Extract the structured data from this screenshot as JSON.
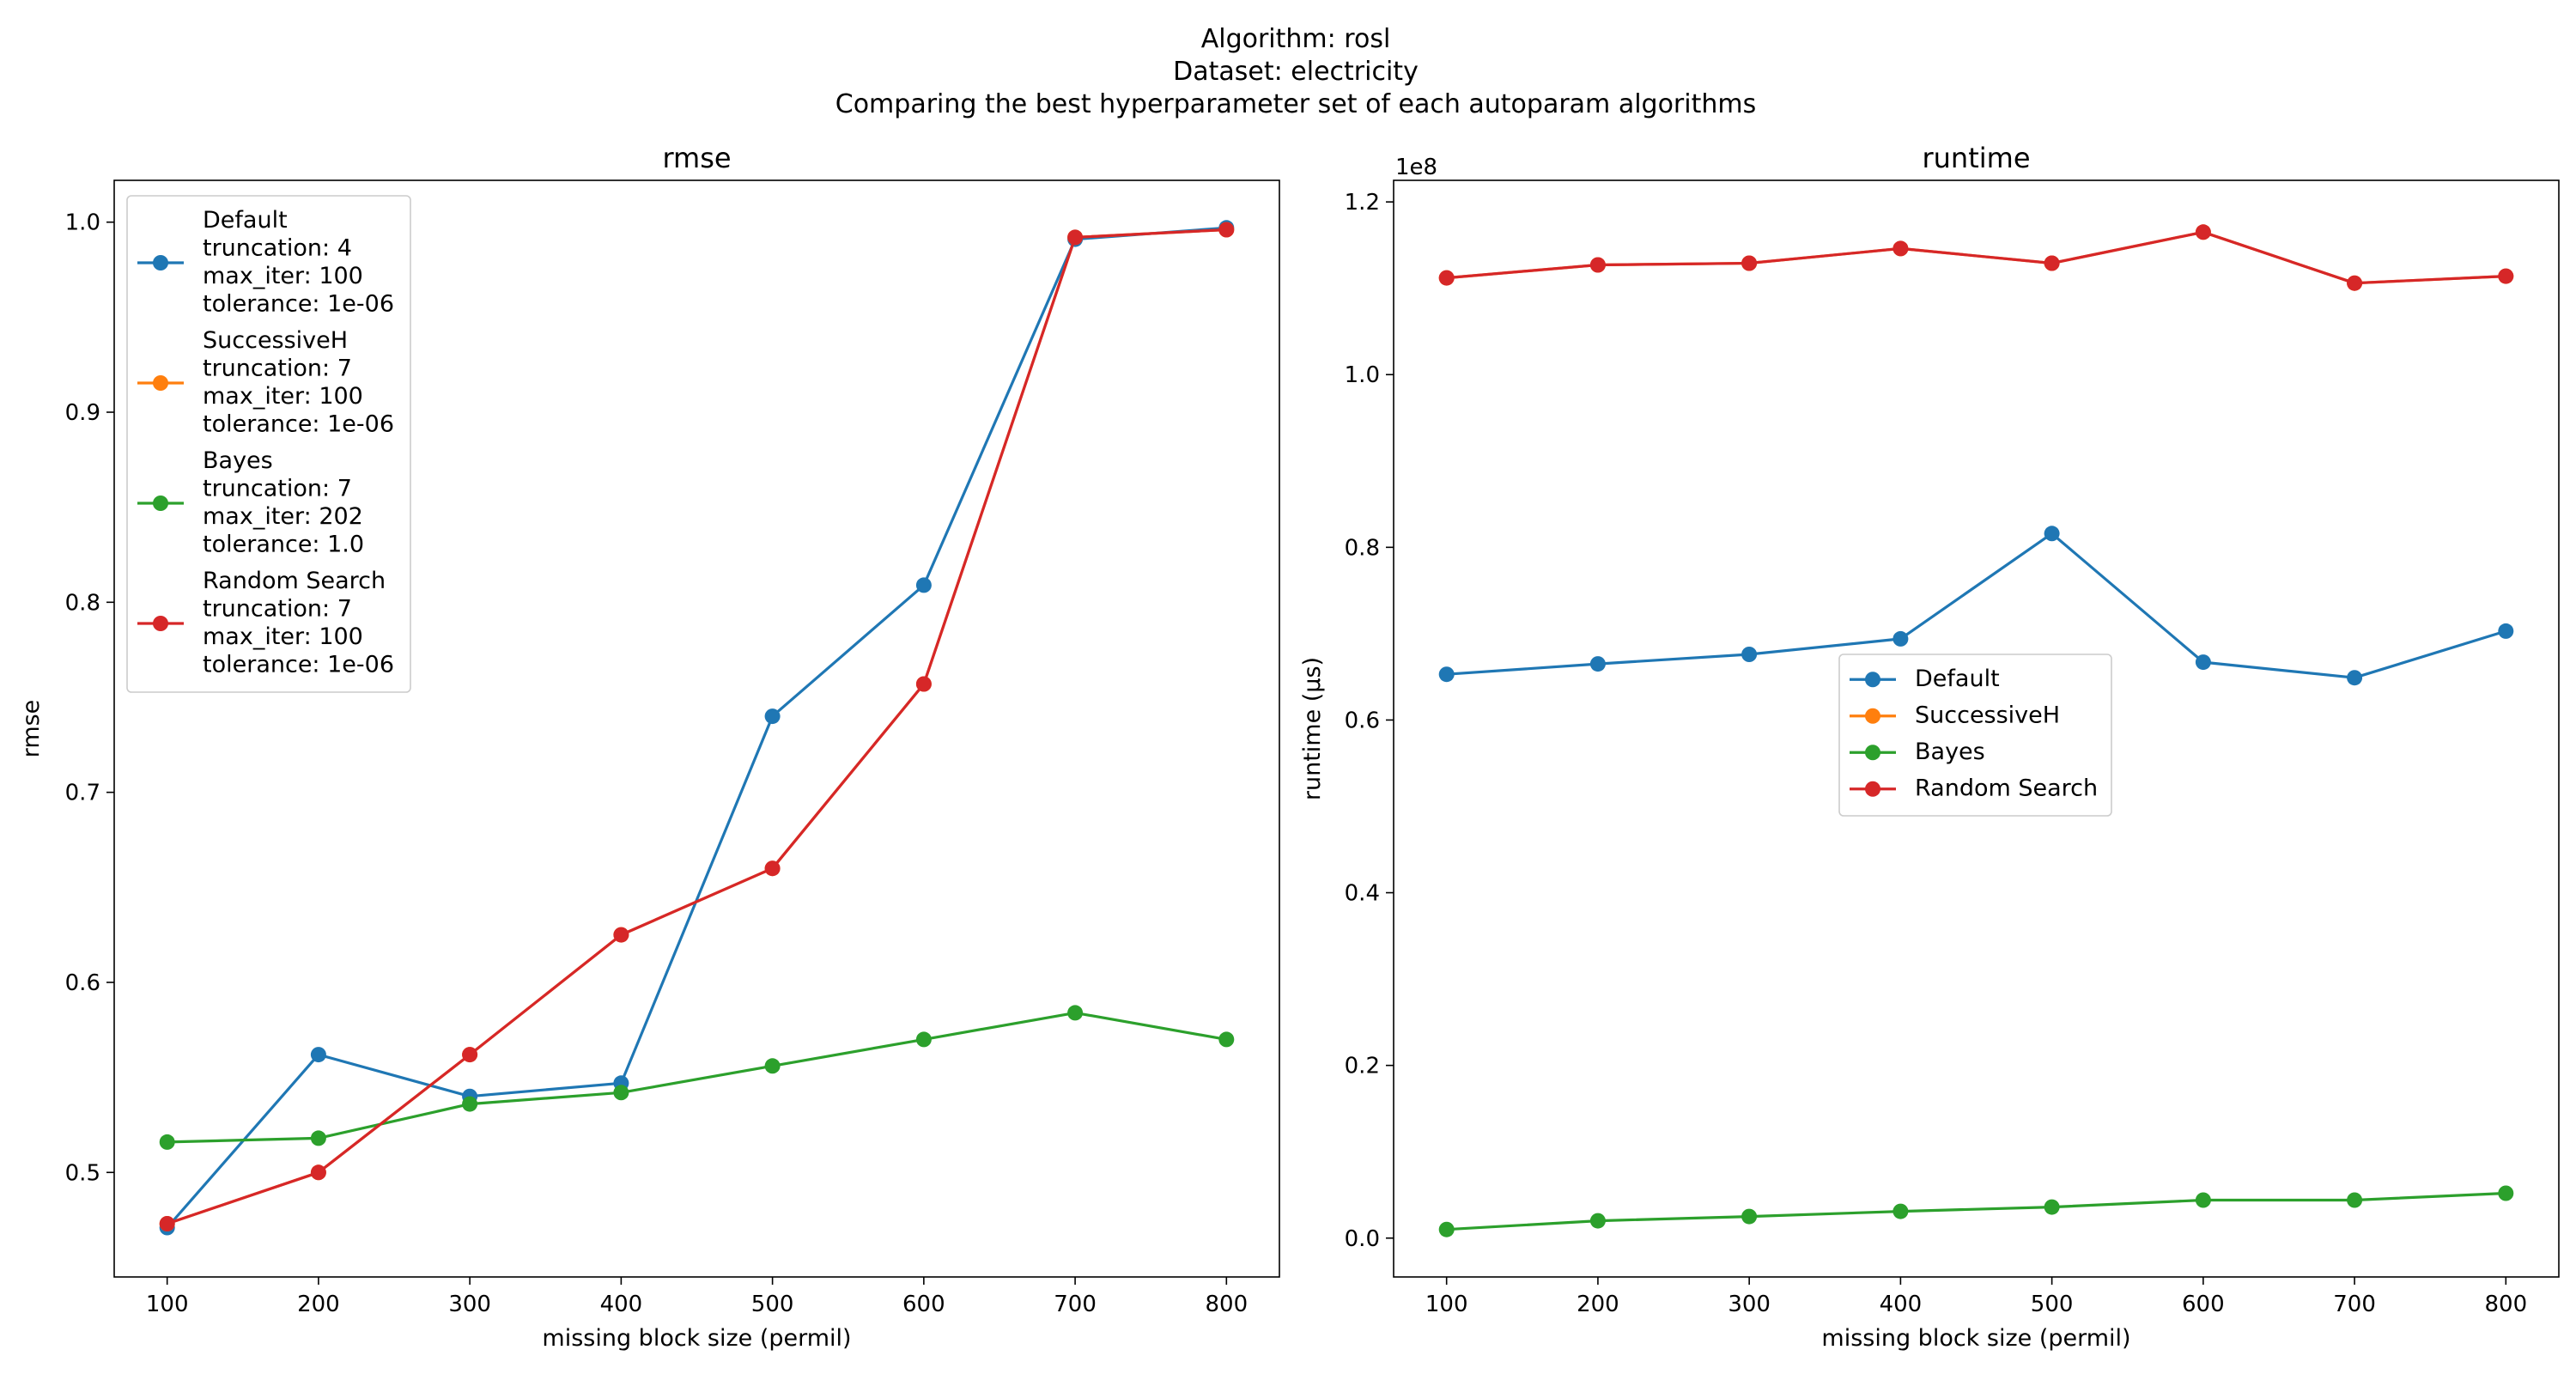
{
  "suptitle": {
    "line1": "Algorithm: rosl",
    "line2": "Dataset: electricity",
    "line3": "Comparing the best hyperparameter set of each autoparam algorithms"
  },
  "colors": {
    "default": "#1f77b4",
    "successiveh": "#ff7f0e",
    "bayes": "#2ca02c",
    "random": "#d62728"
  },
  "chart_data": [
    {
      "type": "line",
      "title": "rmse",
      "xlabel": "missing block size (permil)",
      "ylabel": "rmse",
      "x": [
        100,
        200,
        300,
        400,
        500,
        600,
        700,
        800
      ],
      "xlim": [
        65,
        835
      ],
      "ylim": [
        0.445,
        1.022
      ],
      "xticks": [
        "100",
        "200",
        "300",
        "400",
        "500",
        "600",
        "700",
        "800"
      ],
      "yticks": [
        "0.5",
        "0.6",
        "0.7",
        "0.8",
        "0.9",
        "1.0"
      ],
      "ytick_values": [
        0.5,
        0.6,
        0.7,
        0.8,
        0.9,
        1.0
      ],
      "grid": false,
      "legend_position": "upper-left",
      "series": [
        {
          "name": "Default",
          "label_lines": [
            "Default",
            "truncation: 4",
            "max_iter: 100",
            "tolerance: 1e-06"
          ],
          "color_key": "default",
          "values": [
            0.471,
            0.562,
            0.54,
            0.547,
            0.74,
            0.809,
            0.991,
            0.997
          ]
        },
        {
          "name": "SuccessiveH",
          "label_lines": [
            "SuccessiveH",
            "truncation: 7",
            "max_iter: 100",
            "tolerance: 1e-06"
          ],
          "color_key": "successiveh",
          "values": [
            0.473,
            0.5,
            0.562,
            0.625,
            0.66,
            0.757,
            0.992,
            0.996
          ]
        },
        {
          "name": "Bayes",
          "label_lines": [
            "Bayes",
            "truncation: 7",
            "max_iter: 202",
            "tolerance: 1.0"
          ],
          "color_key": "bayes",
          "values": [
            0.516,
            0.518,
            0.536,
            0.542,
            0.556,
            0.57,
            0.584,
            0.57
          ]
        },
        {
          "name": "Random Search",
          "label_lines": [
            "Random Search",
            "truncation: 7",
            "max_iter: 100",
            "tolerance: 1e-06"
          ],
          "color_key": "random",
          "values": [
            0.473,
            0.5,
            0.562,
            0.625,
            0.66,
            0.757,
            0.992,
            0.996
          ]
        }
      ]
    },
    {
      "type": "line",
      "title": "runtime",
      "xlabel": "missing block size (permil)",
      "ylabel": "runtime (μs)",
      "offset_text": "1e8",
      "x": [
        100,
        200,
        300,
        400,
        500,
        600,
        700,
        800
      ],
      "xlim": [
        65,
        835
      ],
      "ylim": [
        -0.045,
        1.225
      ],
      "xticks": [
        "100",
        "200",
        "300",
        "400",
        "500",
        "600",
        "700",
        "800"
      ],
      "yticks": [
        "0.0",
        "0.2",
        "0.4",
        "0.6",
        "0.8",
        "1.0",
        "1.2"
      ],
      "ytick_values": [
        0.0,
        0.2,
        0.4,
        0.6,
        0.8,
        1.0,
        1.2
      ],
      "value_scale": "×1e8",
      "grid": false,
      "legend_position": "center",
      "series": [
        {
          "name": "Default",
          "color_key": "default",
          "values": [
            0.653,
            0.665,
            0.676,
            0.694,
            0.816,
            0.667,
            0.649,
            0.703
          ]
        },
        {
          "name": "SuccessiveH",
          "color_key": "successiveh",
          "values": [
            1.112,
            1.127,
            1.129,
            1.146,
            1.129,
            1.165,
            1.106,
            1.114
          ]
        },
        {
          "name": "Bayes",
          "color_key": "bayes",
          "values": [
            0.01,
            0.02,
            0.025,
            0.031,
            0.036,
            0.044,
            0.044,
            0.052
          ]
        },
        {
          "name": "Random Search",
          "color_key": "random",
          "values": [
            1.112,
            1.127,
            1.129,
            1.146,
            1.129,
            1.165,
            1.106,
            1.114
          ]
        }
      ]
    }
  ]
}
